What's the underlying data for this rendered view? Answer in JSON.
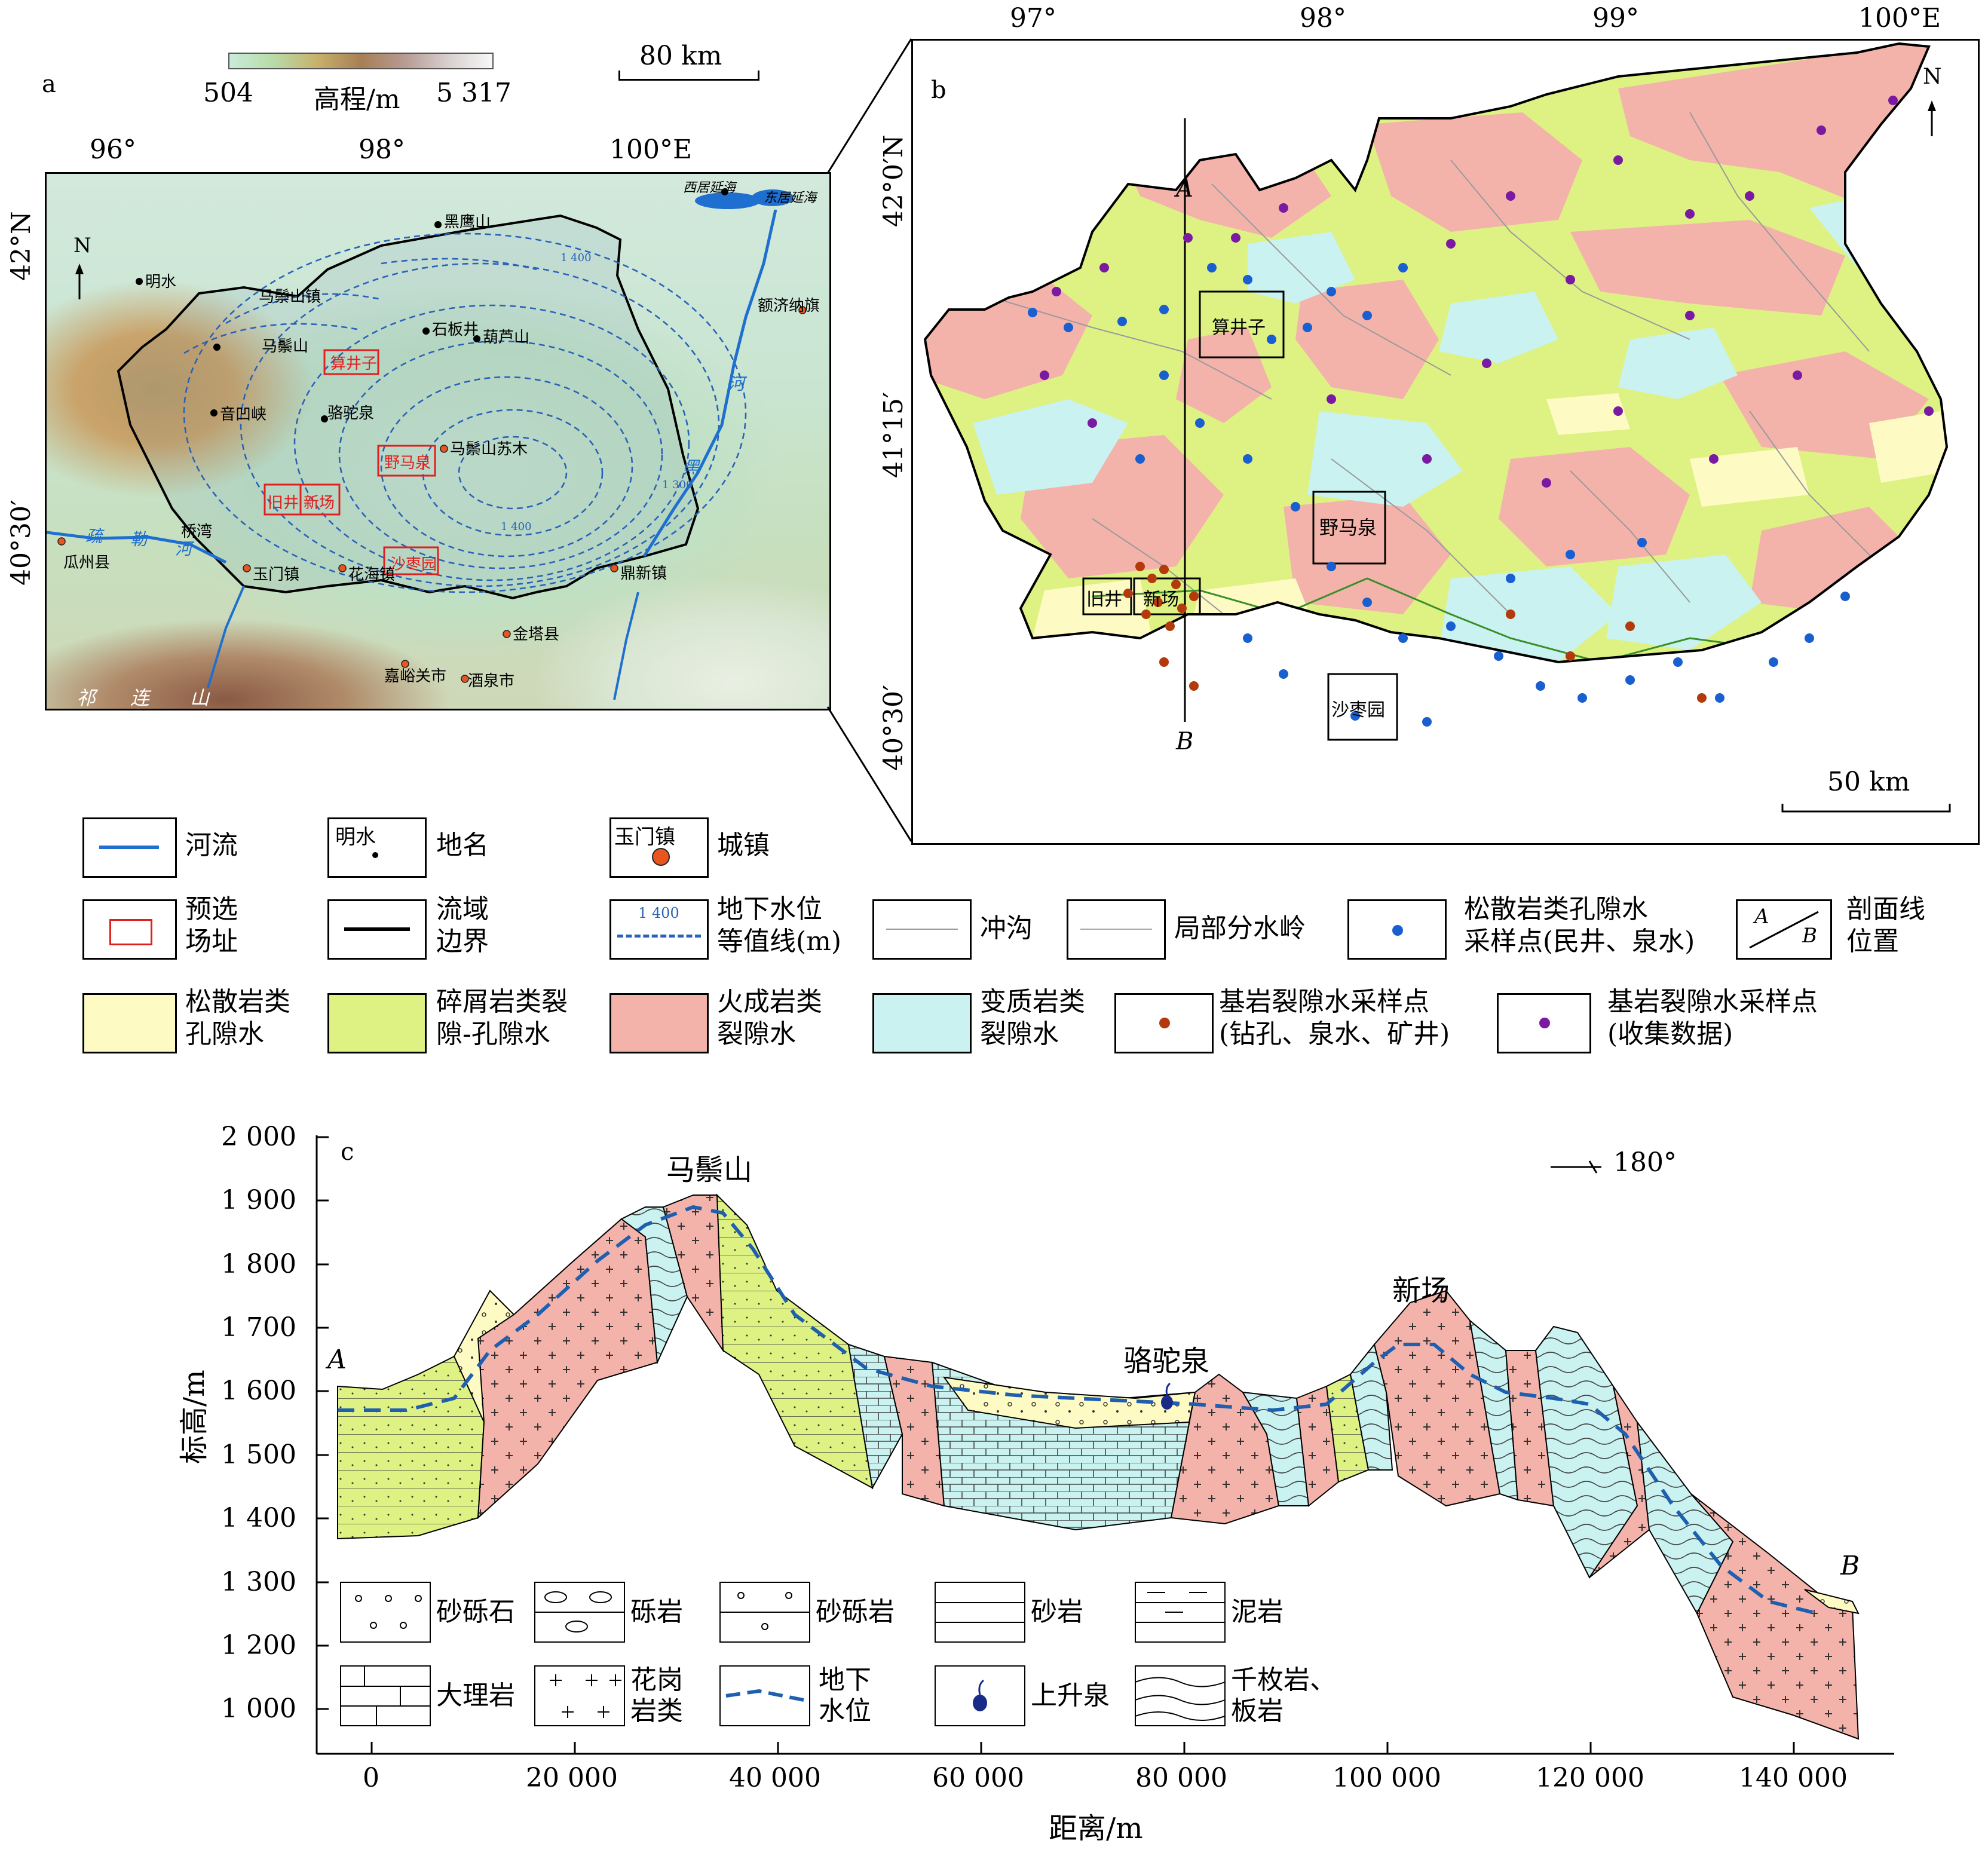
{
  "panel_a": {
    "letter": "a",
    "elevation_bar": {
      "min": "504",
      "label": "高程/m",
      "max": "5 317"
    },
    "scale": "80 km",
    "lon_labels": [
      "96°",
      "98°",
      "100°E"
    ],
    "lat_labels": [
      "42°N",
      "40°30′"
    ],
    "north": "N",
    "place_names": [
      "黑鹰山",
      "明水",
      "马鬃山镇",
      "石板井",
      "葫芦山",
      "马鬃山",
      "音凹峡",
      "骆驼泉",
      "马鬃山苏木",
      "桥湾",
      "西居延海",
      "东居延海",
      "额济纳旗",
      "瓜州县",
      "玉门镇",
      "花海镇",
      "鼎新镇",
      "金塔县",
      "嘉峪关市",
      "酒泉市"
    ],
    "sites": [
      "算井子",
      "野马泉",
      "旧井",
      "新场",
      "沙枣园"
    ],
    "rivers": [
      "疏",
      "勒",
      "河",
      "黑",
      "河"
    ],
    "mountain": [
      "祁",
      "连",
      "山"
    ],
    "contours": [
      "1 400",
      "1 300",
      "1 400"
    ]
  },
  "panel_b": {
    "letter": "b",
    "lon_labels": [
      "97°",
      "98°",
      "99°",
      "100°E"
    ],
    "lat_labels": [
      "42°0′N",
      "41°15′",
      "40°30′"
    ],
    "north": "N",
    "scale": "50 km",
    "sites": [
      "算井子",
      "野马泉",
      "旧井",
      "新场",
      "沙枣园"
    ],
    "section_ends": [
      "A",
      "B"
    ]
  },
  "legend_map": [
    {
      "id": "river",
      "label": "河流"
    },
    {
      "id": "place",
      "symbol_text": "明水",
      "label": "地名"
    },
    {
      "id": "town",
      "symbol_text": "玉门镇",
      "label": "城镇"
    },
    {
      "id": "site",
      "label": "预选\n场址"
    },
    {
      "id": "boundary",
      "label": "流域\n边界"
    },
    {
      "id": "contour",
      "symbol_text": "1 400",
      "label": "地下水位\n等值线(m)"
    },
    {
      "id": "gully",
      "label": "冲沟"
    },
    {
      "id": "divide",
      "label": "局部分水岭"
    },
    {
      "id": "loose-sample",
      "label": "松散岩类孔隙水\n采样点(民井、泉水)"
    },
    {
      "id": "section-line",
      "symbol_text": "A B",
      "label": "剖面线\n位置"
    },
    {
      "id": "loose",
      "label": "松散岩类\n孔隙水"
    },
    {
      "id": "clastic",
      "label": "碎屑岩类裂\n隙-孔隙水"
    },
    {
      "id": "igneous",
      "label": "火成岩类\n裂隙水"
    },
    {
      "id": "metamorphic",
      "label": "变质岩类\n裂隙水"
    },
    {
      "id": "bedrock-sample",
      "label": "基岩裂隙水采样点\n(钻孔、泉水、矿井)"
    },
    {
      "id": "bedrock-collected",
      "label": "基岩裂隙水采样点\n(收集数据)"
    }
  ],
  "panel_c": {
    "letter": "c",
    "ylabel": "标高/m",
    "xlabel": "距离/m",
    "y_ticks": [
      "2 000",
      "1 900",
      "1 800",
      "1 700",
      "1 600",
      "1 500",
      "1 400",
      "1 300",
      "1 200",
      "1 000"
    ],
    "x_ticks": [
      "0",
      "20 000",
      "40 000",
      "60 000",
      "80 000",
      "100 000",
      "120 000",
      "140 000"
    ],
    "peaks": [
      "马鬃山",
      "骆驼泉",
      "新场"
    ],
    "ends": [
      "A",
      "B"
    ],
    "orientation": "180°",
    "lithology_legend": [
      "砂砾石",
      "砾岩",
      "砂砾岩",
      "砂岩",
      "泥岩",
      "大理岩",
      "花岗\n岩类",
      "地下\n水位",
      "上升泉",
      "千枚岩、\n板岩"
    ]
  },
  "colors": {
    "loose": "#fdfbc3",
    "clastic": "#def283",
    "igneous": "#f3b3aa",
    "metamorphic": "#c9f2f0",
    "river": "#1f6fd1",
    "contour": "#2a62b8",
    "site": "#e02020",
    "sample_blue": "#1a5fd0",
    "sample_brown": "#b23a0c",
    "sample_purple": "#7a1aa3"
  }
}
